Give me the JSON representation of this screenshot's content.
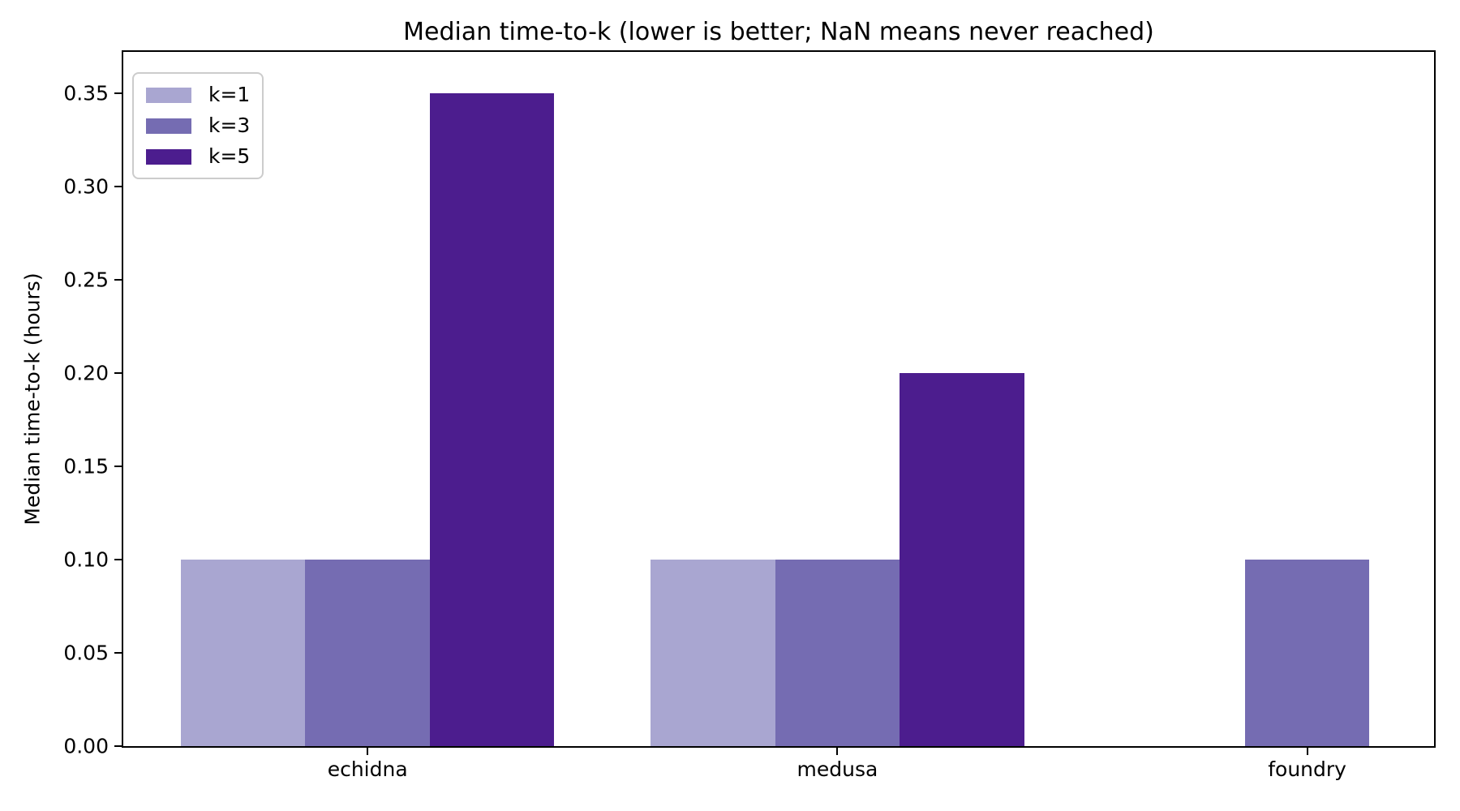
{
  "chart_data": {
    "type": "bar",
    "title": "Median time-to-k (lower is better; NaN means never reached)",
    "xlabel": "",
    "ylabel": "Median time-to-k (hours)",
    "categories": [
      "echidna",
      "medusa",
      "foundry"
    ],
    "series": [
      {
        "name": "k=1",
        "color": "#a9a6d1",
        "values": [
          0.1,
          0.1,
          null
        ]
      },
      {
        "name": "k=3",
        "color": "#756cb2",
        "values": [
          0.1,
          0.1,
          0.1
        ]
      },
      {
        "name": "k=5",
        "color": "#4c1d8e",
        "values": [
          0.35,
          0.2,
          null
        ]
      }
    ],
    "null_means": "NaN (never reached) — bar not drawn",
    "ylim": [
      0,
      0.372
    ],
    "xlim": [
      -0.52,
      2.27
    ],
    "bar_width": 0.265,
    "bar_offsets": [
      -0.265,
      0,
      0.265
    ],
    "yticks": [
      "0.00",
      "0.05",
      "0.10",
      "0.15",
      "0.20",
      "0.25",
      "0.30",
      "0.35"
    ],
    "grid": false,
    "legend_position": "upper-left",
    "colors": {
      "axis": "#000000",
      "text": "#000000",
      "legend_border": "#cccccc",
      "background": "#ffffff"
    }
  }
}
